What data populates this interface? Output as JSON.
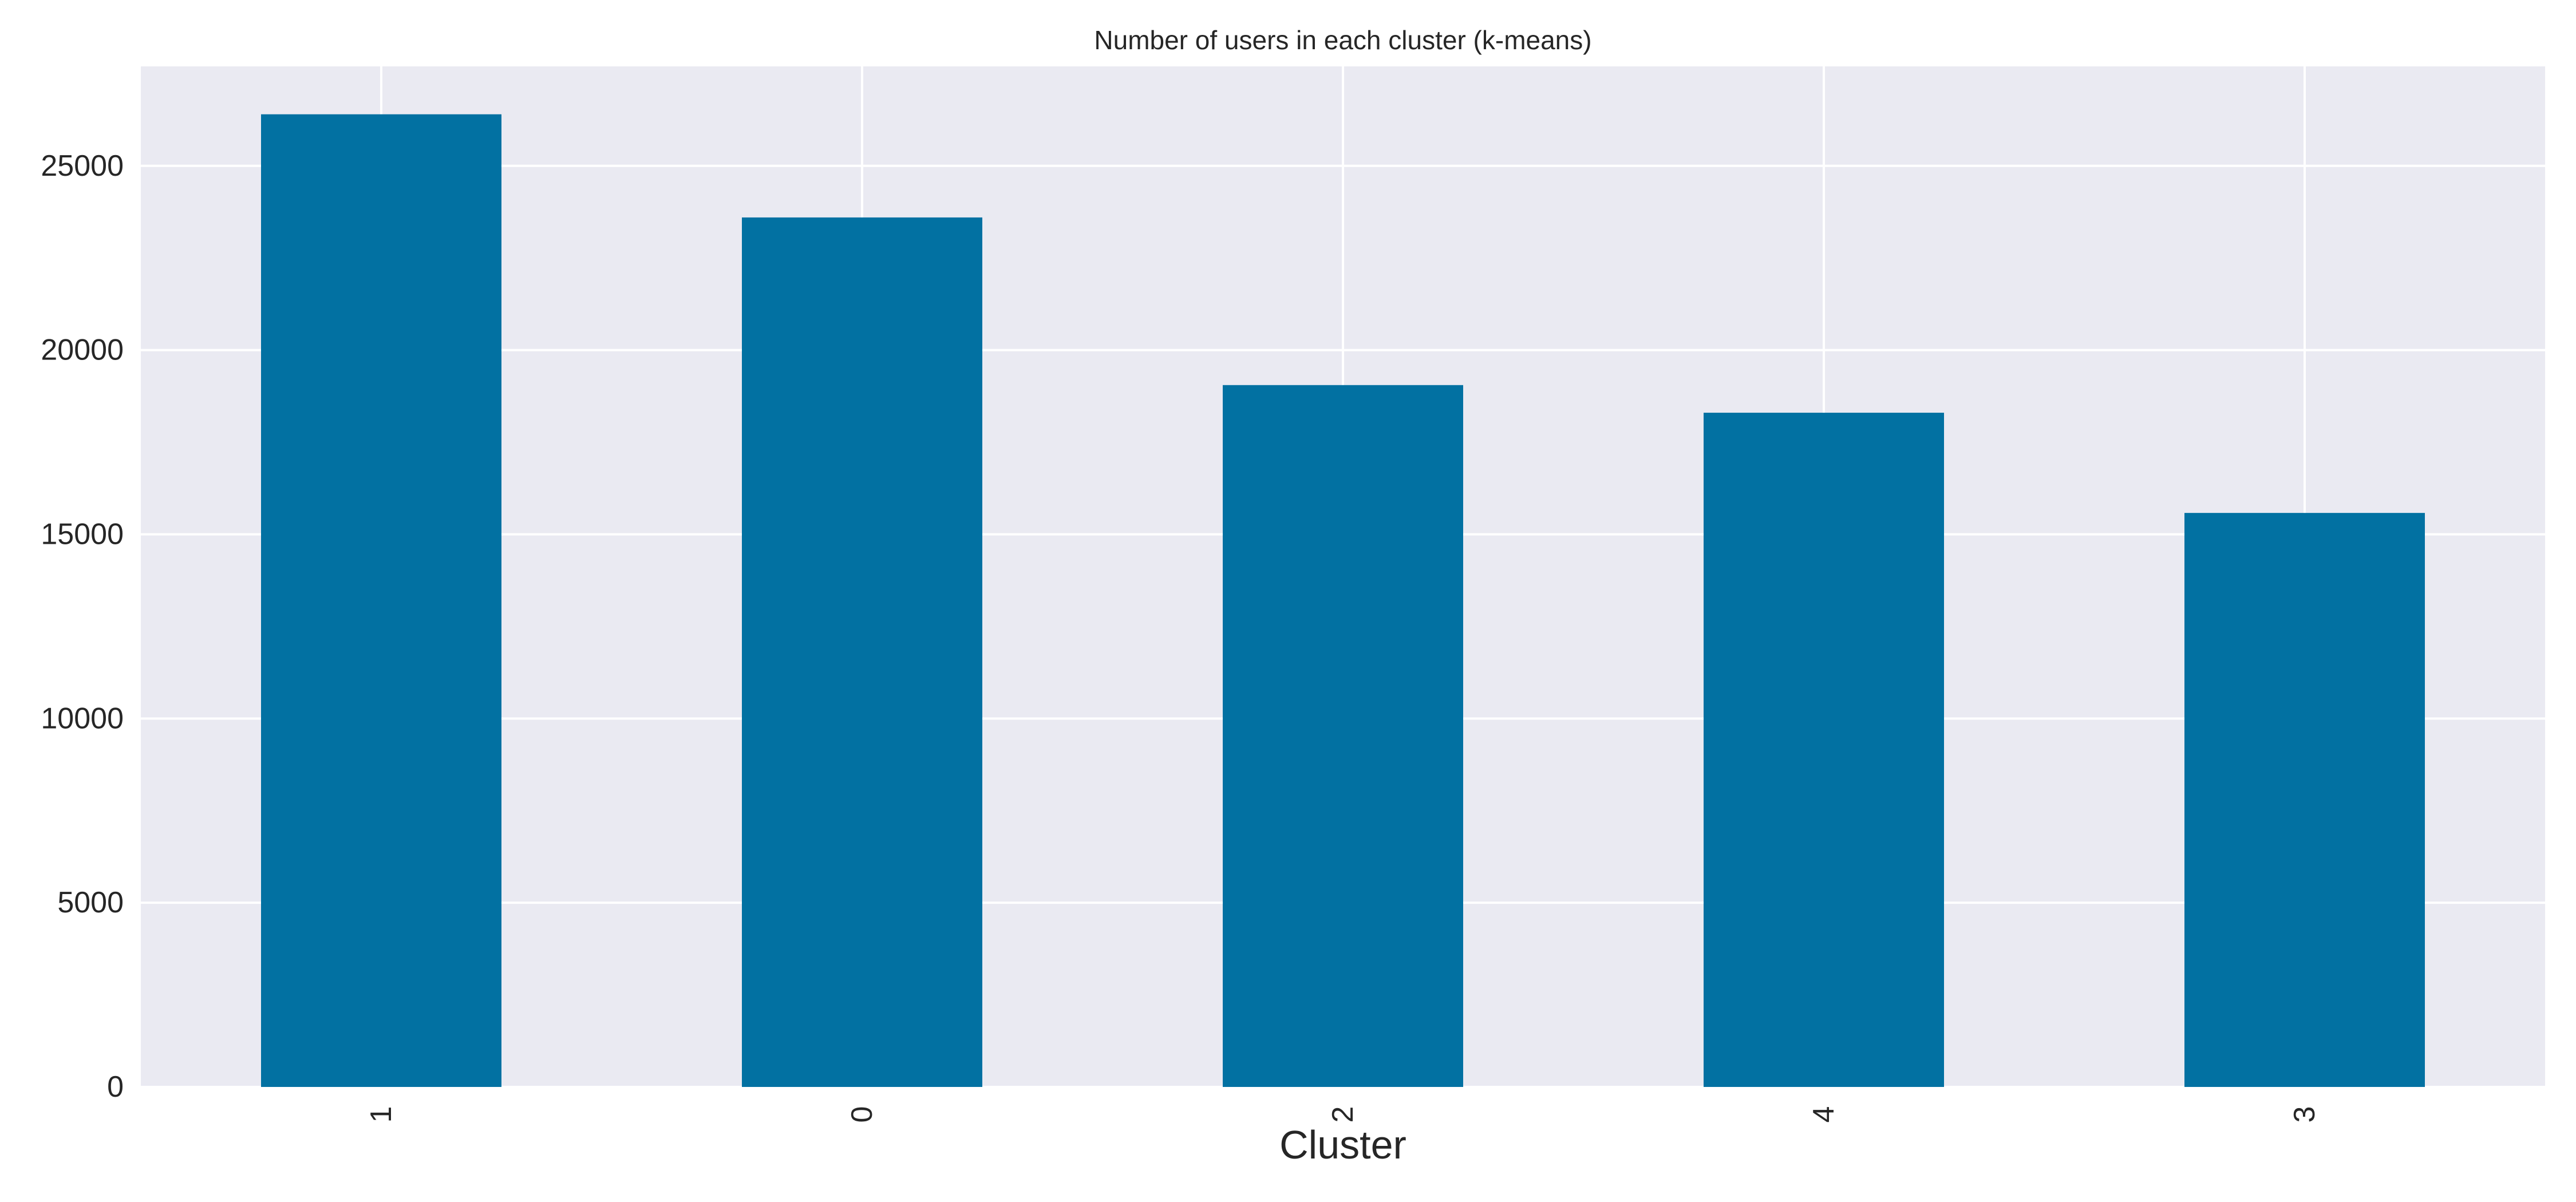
{
  "chart_data": {
    "type": "bar",
    "title": "Number of users in each cluster (k-means)",
    "xlabel": "Cluster",
    "ylabel": "",
    "categories": [
      "1",
      "0",
      "2",
      "4",
      "3"
    ],
    "values": [
      26400,
      23600,
      19050,
      18300,
      15580
    ],
    "ylim": [
      0,
      27700
    ],
    "yticks": [
      0,
      5000,
      10000,
      15000,
      20000,
      25000
    ],
    "ytick_labels": [
      "0",
      "5000",
      "10000",
      "15000",
      "20000",
      "25000"
    ],
    "grid": true,
    "legend": "none",
    "x_tick_rotation": "vertical",
    "colors": {
      "bar": "#0271a2",
      "plot_background": "#eaeaf2",
      "grid": "#ffffff",
      "text": "#262626",
      "figure_background": "#ffffff"
    }
  }
}
